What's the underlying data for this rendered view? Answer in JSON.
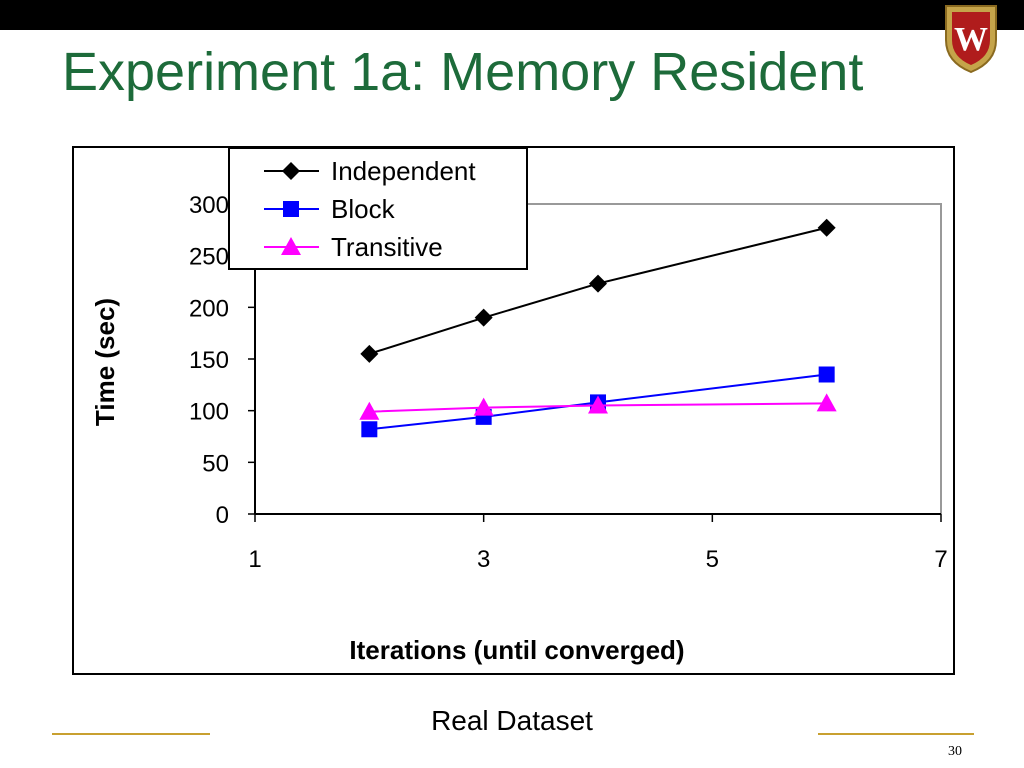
{
  "slide": {
    "title": "Experiment 1a: Memory Resident",
    "caption": "Real Dataset",
    "page_number": "30",
    "colors": {
      "title": "#1d6b3a",
      "top_bar": "#000000",
      "accent_rule": "#c8a030"
    },
    "logo_icon": "university-crest"
  },
  "chart_data": {
    "type": "line",
    "title": "",
    "xlabel": "Iterations (until converged)",
    "ylabel": "Time (sec)",
    "xlim": [
      1,
      7
    ],
    "ylim": [
      0,
      300
    ],
    "xticks": [
      1,
      3,
      5,
      7
    ],
    "yticks": [
      0,
      50,
      100,
      150,
      200,
      250,
      300
    ],
    "grid": false,
    "legend_position": "top-left",
    "series": [
      {
        "name": "Independent",
        "color": "#000000",
        "marker": "diamond",
        "x": [
          2,
          3,
          4,
          6
        ],
        "y": [
          155,
          190,
          223,
          277
        ]
      },
      {
        "name": "Block",
        "color": "#0000ff",
        "marker": "square",
        "x": [
          2,
          3,
          4,
          6
        ],
        "y": [
          82,
          94,
          108,
          135
        ]
      },
      {
        "name": "Transitive",
        "color": "#ff00ff",
        "marker": "triangle",
        "x": [
          2,
          3,
          4,
          6
        ],
        "y": [
          99,
          103,
          105,
          107
        ]
      }
    ]
  }
}
